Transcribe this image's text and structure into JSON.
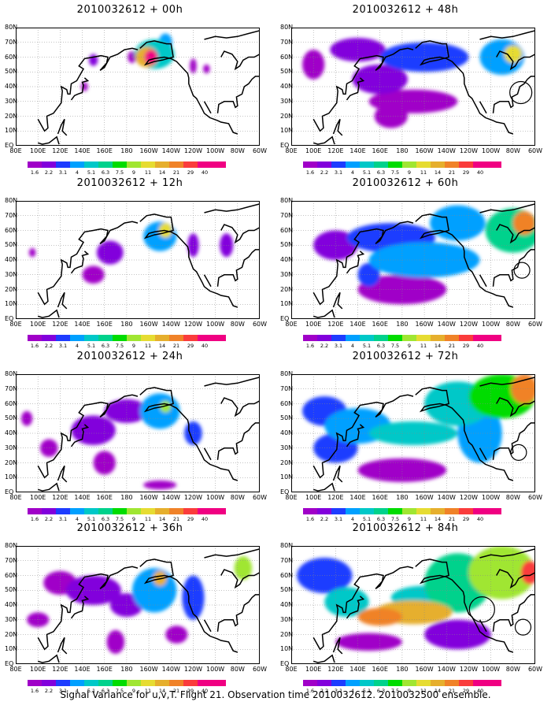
{
  "caption": "Signal Variance for u,v,T. Flight 21. Observation time 2010032612. 2010032500 ensemble.",
  "chart_data": {
    "type": "heatmap",
    "x_ticks": [
      "80E",
      "100E",
      "120E",
      "140E",
      "160E",
      "180",
      "160W",
      "140W",
      "120W",
      "100W",
      "80W",
      "60W"
    ],
    "y_ticks": [
      "EQ",
      "10N",
      "20N",
      "30N",
      "40N",
      "50N",
      "60N",
      "70N",
      "80N"
    ],
    "colorbar_levels": [
      "1.6",
      "2.2",
      "3.1",
      "4",
      "5.1",
      "6.3",
      "7.5",
      "9",
      "11",
      "14",
      "21",
      "29",
      "40"
    ],
    "colorbar_colors": [
      "#a000c8",
      "#8200dc",
      "#1e3cff",
      "#00a0ff",
      "#00c8c8",
      "#00d28c",
      "#00dc00",
      "#a0e632",
      "#e6dc32",
      "#e6af2d",
      "#f08228",
      "#fa3c3c",
      "#f00082"
    ],
    "panels": [
      {
        "title": "2010032612 + 00h",
        "forecast_hour": 0,
        "peak_level": "21"
      },
      {
        "title": "2010032612 + 12h",
        "forecast_hour": 12,
        "peak_level": "11"
      },
      {
        "title": "2010032612 + 24h",
        "forecast_hour": 24,
        "peak_level": "9"
      },
      {
        "title": "2010032612 + 36h",
        "forecast_hour": 36,
        "peak_level": "11"
      },
      {
        "title": "2010032612 + 48h",
        "forecast_hour": 48,
        "peak_level": "11"
      },
      {
        "title": "2010032612 + 60h",
        "forecast_hour": 60,
        "peak_level": "14"
      },
      {
        "title": "2010032612 + 72h",
        "forecast_hour": 72,
        "peak_level": "14"
      },
      {
        "title": "2010032612 + 84h",
        "forecast_hour": 84,
        "peak_level": "21"
      }
    ]
  }
}
